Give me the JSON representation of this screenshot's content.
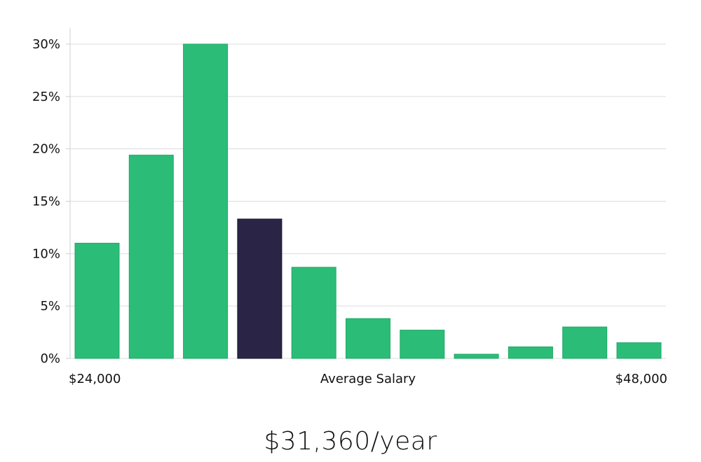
{
  "chart_data": {
    "type": "bar",
    "title": "",
    "xlabel": "Average Salary",
    "ylabel": "",
    "x_min_label": "$24,000",
    "x_max_label": "$48,000",
    "ylim": [
      0,
      31.5
    ],
    "yticks": [
      0,
      5,
      10,
      15,
      20,
      25,
      30
    ],
    "ytick_suffix": "%",
    "grid": true,
    "values": [
      11.0,
      19.4,
      30.0,
      13.3,
      8.7,
      3.8,
      2.7,
      0.4,
      1.1,
      3.0,
      1.5
    ],
    "highlight_index": 3,
    "colors": {
      "bar": "#2bbd77",
      "bar_border": "#1fa866",
      "highlight": "#2a2546",
      "highlight_border": "#17142c",
      "grid": "#dcdcdc",
      "axis": "#cfcfcf"
    }
  },
  "salary": {
    "value": "$31,360/year"
  }
}
